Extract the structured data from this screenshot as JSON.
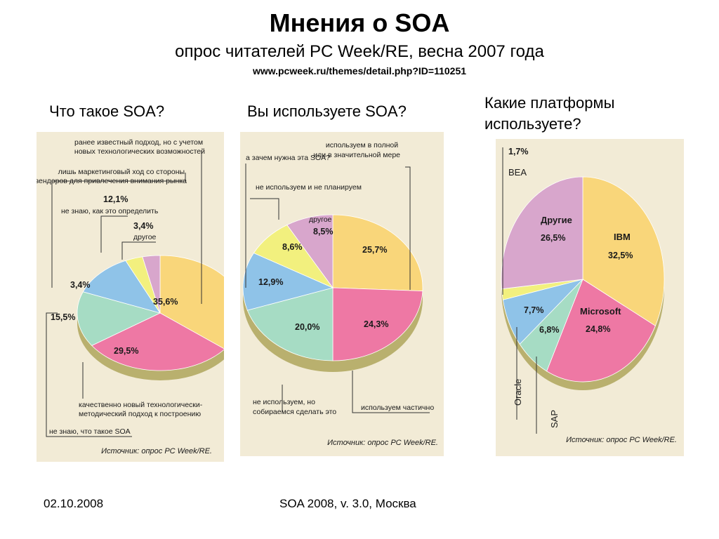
{
  "slide": {
    "title": "Мнения о SOA",
    "subtitle": "опрос читателей PC Week/RE, весна 2007 года",
    "url": "www.pcweek.ru/themes/detail.php?ID=110251",
    "questions": [
      "Что такое SOA?",
      "Вы используете SOA?",
      "Какие платформы используете?"
    ],
    "source_label": "Источник:",
    "source_value": "опрос PC Week/RE.",
    "footer_date": "02.10.2008",
    "footer_event": "SOA 2008, v. 3.0, Москва"
  },
  "chart_data": [
    {
      "type": "pie",
      "title": "Что такое SOA?",
      "slices": [
        {
          "label": "ранее известный подход, но с учетом новых технологических возможностей",
          "value": 35.6,
          "value_label": "35,6%",
          "color": "#f9d67a"
        },
        {
          "label": "качественно новый технологически-методический подход к построению",
          "value": 29.5,
          "value_label": "29,5%",
          "color": "#ee78a4"
        },
        {
          "label": "не знаю, что такое SOA",
          "value": 15.5,
          "value_label": "15,5%",
          "color": "#a6dcc4"
        },
        {
          "label": "лишь маркетинговый ход со стороны вендоров для привлечения внимания рынка",
          "value": 12.1,
          "value_label": "12,1%",
          "color": "#8fc3e8"
        },
        {
          "label": "не знаю, как это определить",
          "value": 3.4,
          "value_label": "3,4%",
          "color": "#f2f07e"
        },
        {
          "label": "другое",
          "value": 3.4,
          "value_label": "3,4%",
          "color": "#d8a6cc"
        }
      ]
    },
    {
      "type": "pie",
      "title": "Вы используете SOA?",
      "slices": [
        {
          "label": "используем в полной или в значительной мере",
          "value": 25.7,
          "value_label": "25,7%",
          "color": "#f9d67a"
        },
        {
          "label": "используем частично",
          "value": 24.3,
          "value_label": "24,3%",
          "color": "#ee78a4"
        },
        {
          "label": "не используем, но собираемся сделать это",
          "value": 20.0,
          "value_label": "20,0%",
          "color": "#a6dcc4"
        },
        {
          "label": "не используем и не планируем",
          "value": 12.9,
          "value_label": "12,9%",
          "color": "#8fc3e8"
        },
        {
          "label": "а зачем нужна эта SOA?",
          "value": 8.6,
          "value_label": "8,6%",
          "color": "#f2f07e"
        },
        {
          "label": "другое",
          "value": 8.5,
          "value_label": "8,5%",
          "color": "#d8a6cc"
        }
      ]
    },
    {
      "type": "pie",
      "title": "Какие платформы используете?",
      "slices": [
        {
          "label": "IBM",
          "value": 32.5,
          "value_label": "32,5%",
          "color": "#f9d67a"
        },
        {
          "label": "Microsoft",
          "value": 24.8,
          "value_label": "24,8%",
          "color": "#ee78a4"
        },
        {
          "label": "SAP",
          "value": 6.8,
          "value_label": "6,8%",
          "color": "#a6dcc4"
        },
        {
          "label": "Oracle",
          "value": 7.7,
          "value_label": "7,7%",
          "color": "#8fc3e8"
        },
        {
          "label": "BEA",
          "value": 1.7,
          "value_label": "1,7%",
          "color": "#f2f07e"
        },
        {
          "label": "Другие",
          "value": 26.5,
          "value_label": "26,5%",
          "color": "#d8a6cc"
        }
      ]
    }
  ]
}
